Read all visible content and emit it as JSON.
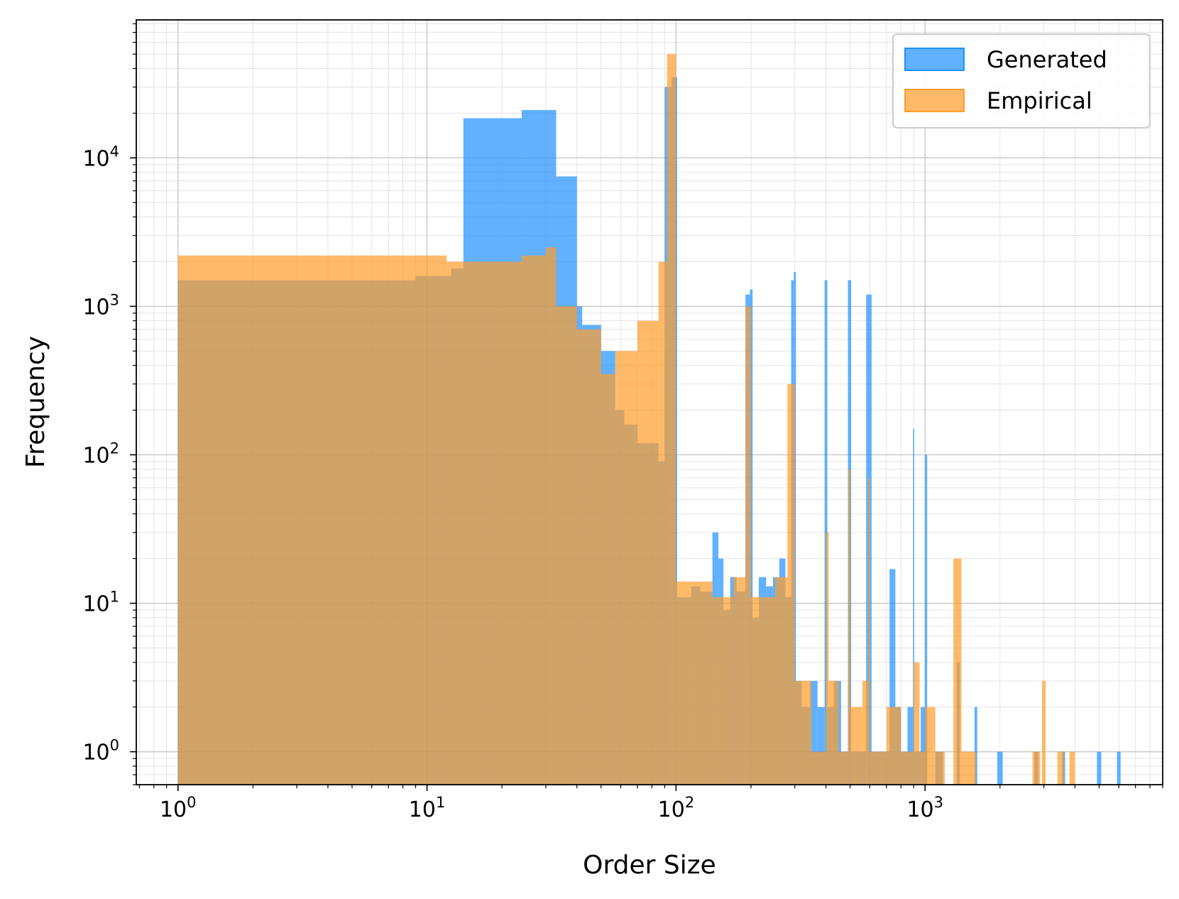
{
  "chart_data": {
    "type": "bar",
    "xlabel": "Order Size",
    "ylabel": "Frequency",
    "xscale": "log",
    "yscale": "log",
    "xlim": [
      0.68,
      9000
    ],
    "ylim": [
      0.6,
      85000
    ],
    "x_ticks": [
      {
        "base": "10",
        "exp": "0",
        "value": 1
      },
      {
        "base": "10",
        "exp": "1",
        "value": 10
      },
      {
        "base": "10",
        "exp": "2",
        "value": 100
      },
      {
        "base": "10",
        "exp": "3",
        "value": 1000
      }
    ],
    "y_ticks": [
      {
        "base": "10",
        "exp": "0",
        "value": 1
      },
      {
        "base": "10",
        "exp": "1",
        "value": 10
      },
      {
        "base": "10",
        "exp": "2",
        "value": 100
      },
      {
        "base": "10",
        "exp": "3",
        "value": 1000
      },
      {
        "base": "10",
        "exp": "4",
        "value": 10000
      }
    ],
    "grid": true,
    "legend_position": "top-right",
    "colors": {
      "Generated": "#1e90ff",
      "Empirical": "#ff9d2a"
    },
    "series": [
      {
        "name": "Generated",
        "bins": [
          [
            1,
            9,
            1500
          ],
          [
            9,
            12.5,
            1600
          ],
          [
            12.5,
            14,
            1800
          ],
          [
            14,
            20,
            18500
          ],
          [
            20,
            24,
            18500
          ],
          [
            24,
            33,
            21000
          ],
          [
            33,
            40,
            7500
          ],
          [
            40,
            42,
            1000
          ],
          [
            42,
            50,
            750
          ],
          [
            50,
            57,
            500
          ],
          [
            57,
            62,
            200
          ],
          [
            62,
            70,
            160
          ],
          [
            70,
            85,
            120
          ],
          [
            85,
            90,
            90
          ],
          [
            90,
            96,
            30000
          ],
          [
            96,
            101,
            35000
          ],
          [
            101,
            115,
            11
          ],
          [
            115,
            125,
            13
          ],
          [
            125,
            140,
            12
          ],
          [
            140,
            148,
            30
          ],
          [
            148,
            155,
            20
          ],
          [
            155,
            165,
            9
          ],
          [
            165,
            175,
            15
          ],
          [
            175,
            190,
            12
          ],
          [
            190,
            198,
            1200
          ],
          [
            198,
            203,
            1300
          ],
          [
            203,
            215,
            8
          ],
          [
            215,
            230,
            15
          ],
          [
            230,
            245,
            13
          ],
          [
            245,
            260,
            15
          ],
          [
            260,
            275,
            20
          ],
          [
            275,
            290,
            11
          ],
          [
            290,
            297,
            1500
          ],
          [
            297,
            303,
            1700
          ],
          [
            303,
            320,
            3
          ],
          [
            320,
            345,
            2
          ],
          [
            345,
            370,
            3
          ],
          [
            370,
            395,
            2
          ],
          [
            395,
            405,
            1500
          ],
          [
            405,
            430,
            2
          ],
          [
            430,
            460,
            3
          ],
          [
            460,
            490,
            1
          ],
          [
            490,
            505,
            1500
          ],
          [
            505,
            540,
            1
          ],
          [
            540,
            580,
            1
          ],
          [
            580,
            610,
            1200
          ],
          [
            610,
            660,
            1
          ],
          [
            660,
            720,
            1
          ],
          [
            720,
            760,
            17
          ],
          [
            760,
            800,
            2
          ],
          [
            800,
            850,
            1
          ],
          [
            850,
            895,
            2
          ],
          [
            895,
            905,
            150
          ],
          [
            905,
            960,
            1
          ],
          [
            960,
            1000,
            2
          ],
          [
            1000,
            1020,
            100
          ],
          [
            1100,
            1180,
            1
          ],
          [
            1340,
            1380,
            4
          ],
          [
            1580,
            1620,
            2
          ],
          [
            1950,
            2050,
            1
          ],
          [
            2750,
            2850,
            1
          ],
          [
            3550,
            3650,
            1
          ],
          [
            4900,
            5100,
            1
          ],
          [
            5900,
            6100,
            1
          ]
        ]
      },
      {
        "name": "Empirical",
        "bins": [
          [
            1,
            12,
            2200
          ],
          [
            12,
            18,
            2000
          ],
          [
            18,
            24,
            2000
          ],
          [
            24,
            30,
            2200
          ],
          [
            30,
            33,
            2500
          ],
          [
            33,
            40,
            1000
          ],
          [
            40,
            50,
            700
          ],
          [
            50,
            57,
            350
          ],
          [
            57,
            70,
            500
          ],
          [
            70,
            85,
            800
          ],
          [
            85,
            92,
            2000
          ],
          [
            92,
            100,
            50000
          ],
          [
            100,
            140,
            14
          ],
          [
            140,
            170,
            11
          ],
          [
            170,
            190,
            15
          ],
          [
            190,
            200,
            1000
          ],
          [
            200,
            250,
            11
          ],
          [
            250,
            280,
            15
          ],
          [
            280,
            300,
            300
          ],
          [
            300,
            350,
            3
          ],
          [
            350,
            400,
            1
          ],
          [
            400,
            410,
            30
          ],
          [
            410,
            450,
            3
          ],
          [
            450,
            490,
            1
          ],
          [
            490,
            500,
            80
          ],
          [
            500,
            560,
            2
          ],
          [
            560,
            590,
            3
          ],
          [
            590,
            600,
            70
          ],
          [
            600,
            700,
            1
          ],
          [
            700,
            800,
            2
          ],
          [
            800,
            850,
            1
          ],
          [
            850,
            900,
            1
          ],
          [
            900,
            950,
            4
          ],
          [
            950,
            1000,
            1
          ],
          [
            1000,
            1100,
            2
          ],
          [
            1100,
            1200,
            1
          ],
          [
            1300,
            1400,
            20
          ],
          [
            1400,
            1500,
            1
          ],
          [
            1500,
            1600,
            1
          ],
          [
            2700,
            2900,
            1
          ],
          [
            2950,
            3050,
            3
          ],
          [
            3400,
            3600,
            1
          ],
          [
            3800,
            4000,
            1
          ]
        ]
      }
    ]
  }
}
